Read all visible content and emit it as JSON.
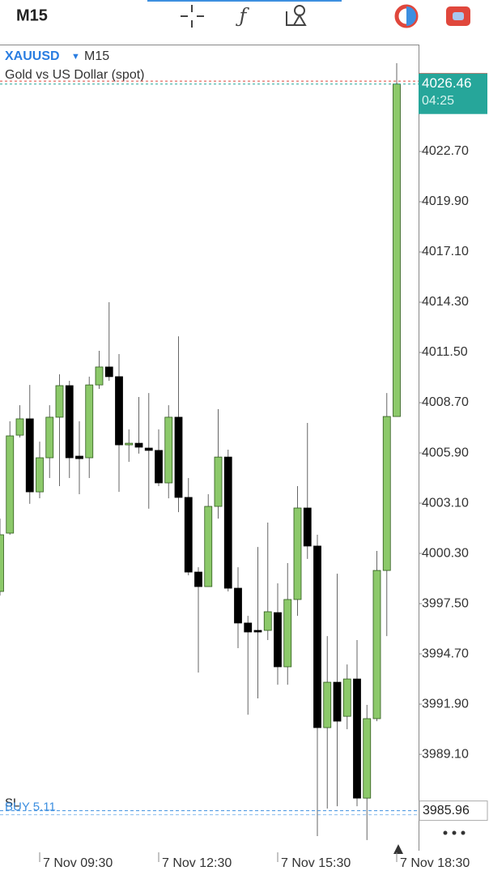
{
  "toolbar": {
    "timeframe": "M15"
  },
  "chart_data": {
    "type": "candlestick",
    "symbol": "XAUUSD",
    "timeframe": "M15",
    "title": "Gold vs US Dollar (spot)",
    "categories": [
      null,
      null,
      null,
      null,
      "7 Nov 09:30",
      null,
      null,
      null,
      null,
      null,
      null,
      null,
      null,
      null,
      null,
      null,
      "7 Nov 12:30",
      null,
      null,
      null,
      null,
      null,
      null,
      null,
      null,
      null,
      null,
      null,
      "7 Nov 15:30",
      null,
      null,
      null,
      null,
      null,
      null,
      null,
      null,
      null,
      null,
      null,
      "7 Nov 18:30"
    ],
    "open": [
      3998.18,
      4001.43,
      4006.89,
      4007.8,
      4003.73,
      4005.63,
      4007.89,
      4009.65,
      4005.72,
      4005.63,
      4009.69,
      4010.69,
      4010.15,
      4006.35,
      4006.44,
      4006.17,
      4006.04,
      4004.23,
      4007.89,
      4003.42,
      3999.26,
      3998.45,
      4002.92,
      4005.67,
      3998.36,
      3996.42,
      3996.01,
      3996.01,
      3997.0,
      3993.98,
      3997.73,
      4002.83,
      4000.71,
      3990.59,
      3993.12,
      3991.22,
      3993.3,
      3986.66,
      3991.09,
      3999.35,
      4007.93
    ],
    "high": [
      4002.24,
      4007.66,
      4008.56,
      4009.69,
      4006.53,
      4008.56,
      4010.28,
      4009.92,
      4007.66,
      4010.15,
      4011.59,
      4014.3,
      4011.41,
      4007.21,
      4009.02,
      4009.24,
      4007.21,
      4008.56,
      4012.4,
      4004.5,
      3999.53,
      4003.6,
      4008.34,
      4006.08,
      3999.53,
      3996.82,
      4000.66,
      4002.02,
      3998.63,
      3999.76,
      4004.05,
      4007.57,
      4001.34,
      3995.69,
      3999.17,
      3994.11,
      3995.47,
      3991.86,
      4000.44,
      4009.24,
      4027.62
    ],
    "low": [
      3997.95,
      4001.34,
      4006.76,
      4003.06,
      4003.37,
      4004.5,
      4004.05,
      4004.5,
      4003.6,
      4004.5,
      4009.47,
      4009.92,
      4003.73,
      4005.4,
      4005.86,
      4002.79,
      4004.05,
      4003.37,
      4002.6,
      3999.08,
      3993.66,
      3998.45,
      4002.24,
      3998.18,
      3995.02,
      3991.31,
      3992.22,
      3995.47,
      3992.98,
      3992.98,
      3996.82,
      3999.99,
      3984.54,
      3986.08,
      3986.21,
      3990.5,
      3986.21,
      3984.32,
      3990.95,
      3995.69,
      4007.93
    ],
    "close": [
      4001.34,
      4006.85,
      4007.8,
      4003.73,
      4005.63,
      4007.89,
      4009.65,
      4005.63,
      4005.58,
      4009.69,
      4010.69,
      4010.15,
      4006.35,
      4006.44,
      4006.22,
      4006.04,
      4004.23,
      4007.89,
      4003.42,
      3999.26,
      3998.45,
      4002.92,
      4005.67,
      3998.36,
      3996.42,
      3995.92,
      3995.92,
      3997.05,
      3993.98,
      3997.73,
      4002.83,
      4000.71,
      3990.59,
      3993.12,
      3990.95,
      3993.3,
      3986.66,
      3991.09,
      3999.35,
      4007.93,
      4026.46
    ],
    "up_color": "#8cc96a",
    "down_color": "#000000",
    "ylim": [
      3983.73,
      4028.66
    ],
    "yticks": [
      {
        "value": 4022.7,
        "label": "4022.70"
      },
      {
        "value": 4019.9,
        "label": "4019.90"
      },
      {
        "value": 4017.1,
        "label": "4017.10"
      },
      {
        "value": 4014.3,
        "label": "4014.30"
      },
      {
        "value": 4011.5,
        "label": "4011.50"
      },
      {
        "value": 4008.7,
        "label": "4008.70"
      },
      {
        "value": 4005.9,
        "label": "4005.90"
      },
      {
        "value": 4003.1,
        "label": "4003.10"
      },
      {
        "value": 4000.3,
        "label": "4000.30"
      },
      {
        "value": 3997.5,
        "label": "3997.50"
      },
      {
        "value": 3994.7,
        "label": "3994.70"
      },
      {
        "value": 3991.9,
        "label": "3991.90"
      },
      {
        "value": 3989.1,
        "label": "3989.10"
      }
    ],
    "grid": false,
    "last_price": 4026.46,
    "ask": 4026.62,
    "countdown": "04:25",
    "order": {
      "label": "BUY 5.11",
      "value": 3985.96
    },
    "sl_label": "SL"
  }
}
